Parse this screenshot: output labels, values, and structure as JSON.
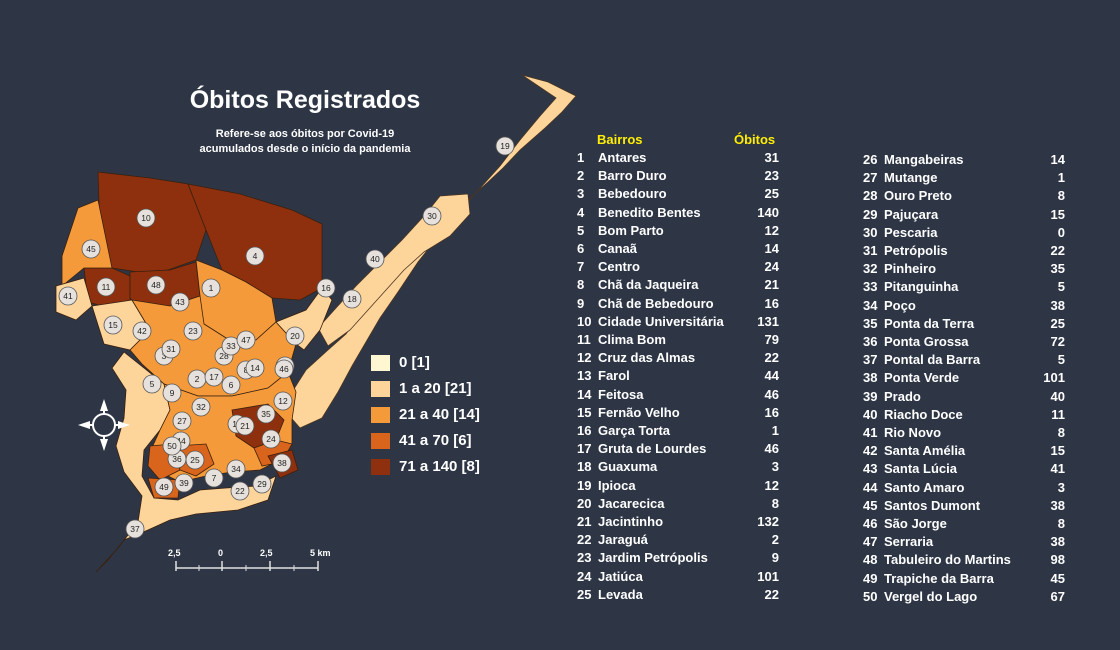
{
  "title": "Óbitos Registrados",
  "subtitle_lines": [
    "Refere-se aos óbitos por Covid-19",
    "acumulados desde o início da pandemia"
  ],
  "legend": [
    {
      "label": "0 [1]",
      "color": "#fff6d2"
    },
    {
      "label": "1 a 20 [21]",
      "color": "#fdd49a"
    },
    {
      "label": "21 a 40 [14]",
      "color": "#f49a3a"
    },
    {
      "label": "41 a 70 [6]",
      "color": "#d9641c"
    },
    {
      "label": "71 a 140 [8]",
      "color": "#8e300e"
    }
  ],
  "scale_bar": {
    "labels": [
      "2,5",
      "0",
      "2,5",
      "5 km"
    ]
  },
  "compass_icon": "compass-rose-icon",
  "table_headers": {
    "bairros": "Bairros",
    "obitos": "Óbitos"
  },
  "neighborhoods": [
    {
      "num": "1",
      "name": "Antares",
      "deaths": "31"
    },
    {
      "num": "2",
      "name": "Barro Duro",
      "deaths": "23"
    },
    {
      "num": "3",
      "name": "Bebedouro",
      "deaths": "25"
    },
    {
      "num": "4",
      "name": "Benedito Bentes",
      "deaths": "140"
    },
    {
      "num": "5",
      "name": "Bom Parto",
      "deaths": "12"
    },
    {
      "num": "6",
      "name": "Canaã",
      "deaths": "14"
    },
    {
      "num": "7",
      "name": "Centro",
      "deaths": "24"
    },
    {
      "num": "8",
      "name": "Chã da Jaqueira",
      "deaths": "21"
    },
    {
      "num": "9",
      "name": "Chã de Bebedouro",
      "deaths": "16"
    },
    {
      "num": "10",
      "name": "Cidade Universitária",
      "deaths": "131"
    },
    {
      "num": "11",
      "name": "Clima Bom",
      "deaths": "79"
    },
    {
      "num": "12",
      "name": "Cruz das Almas",
      "deaths": "22"
    },
    {
      "num": "13",
      "name": "Farol",
      "deaths": "44"
    },
    {
      "num": "14",
      "name": "Feitosa",
      "deaths": "46"
    },
    {
      "num": "15",
      "name": "Fernão Velho",
      "deaths": "16"
    },
    {
      "num": "16",
      "name": "Garça Torta",
      "deaths": "1"
    },
    {
      "num": "17",
      "name": "Gruta de Lourdes",
      "deaths": "46"
    },
    {
      "num": "18",
      "name": "Guaxuma",
      "deaths": "3"
    },
    {
      "num": "19",
      "name": "Ipioca",
      "deaths": "12"
    },
    {
      "num": "20",
      "name": "Jacarecica",
      "deaths": "8"
    },
    {
      "num": "21",
      "name": "Jacintinho",
      "deaths": "132"
    },
    {
      "num": "22",
      "name": "Jaraguá",
      "deaths": "2"
    },
    {
      "num": "23",
      "name": "Jardim Petrópolis",
      "deaths": "9"
    },
    {
      "num": "24",
      "name": "Jatiúca",
      "deaths": "101"
    },
    {
      "num": "25",
      "name": "Levada",
      "deaths": "22"
    },
    {
      "num": "26",
      "name": "Mangabeiras",
      "deaths": "14"
    },
    {
      "num": "27",
      "name": "Mutange",
      "deaths": "1"
    },
    {
      "num": "28",
      "name": "Ouro Preto",
      "deaths": "8"
    },
    {
      "num": "29",
      "name": "Pajuçara",
      "deaths": "15"
    },
    {
      "num": "30",
      "name": "Pescaria",
      "deaths": "0"
    },
    {
      "num": "31",
      "name": "Petrópolis",
      "deaths": "22"
    },
    {
      "num": "32",
      "name": "Pinheiro",
      "deaths": "35"
    },
    {
      "num": "33",
      "name": "Pitanguinha",
      "deaths": "5"
    },
    {
      "num": "34",
      "name": "Poço",
      "deaths": "38"
    },
    {
      "num": "35",
      "name": "Ponta da Terra",
      "deaths": "25"
    },
    {
      "num": "36",
      "name": "Ponta Grossa",
      "deaths": "72"
    },
    {
      "num": "37",
      "name": "Pontal da Barra",
      "deaths": "5"
    },
    {
      "num": "38",
      "name": "Ponta Verde",
      "deaths": "101"
    },
    {
      "num": "39",
      "name": "Prado",
      "deaths": "40"
    },
    {
      "num": "40",
      "name": "Riacho Doce",
      "deaths": "11"
    },
    {
      "num": "41",
      "name": "Rio Novo",
      "deaths": "8"
    },
    {
      "num": "42",
      "name": "Santa Amélia",
      "deaths": "15"
    },
    {
      "num": "43",
      "name": "Santa Lúcia",
      "deaths": "41"
    },
    {
      "num": "44",
      "name": "Santo Amaro",
      "deaths": "3"
    },
    {
      "num": "45",
      "name": "Santos Dumont",
      "deaths": "38"
    },
    {
      "num": "46",
      "name": "São Jorge",
      "deaths": "8"
    },
    {
      "num": "47",
      "name": "Serraria",
      "deaths": "38"
    },
    {
      "num": "48",
      "name": "Tabuleiro do Martins",
      "deaths": "98"
    },
    {
      "num": "49",
      "name": "Trapiche da Barra",
      "deaths": "45"
    },
    {
      "num": "50",
      "name": "Vergel do Lago",
      "deaths": "67"
    }
  ]
}
